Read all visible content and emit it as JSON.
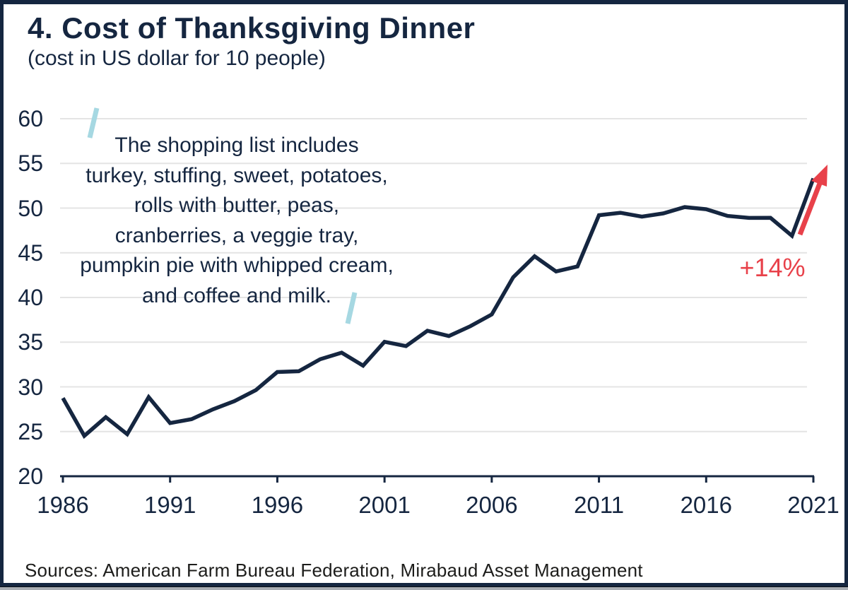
{
  "header": {
    "title": "4. Cost of Thanksgiving Dinner",
    "subtitle": "(cost in US dollar for 10 people)"
  },
  "annotation": {
    "lines": [
      "The shopping list includes",
      "turkey, stuffing, sweet, potatoes,",
      "rolls with butter, peas,",
      "cranberries, a veggie tray,",
      "pumpkin pie with whipped cream,",
      "and coffee and milk."
    ]
  },
  "callout": {
    "label": "+14%"
  },
  "footer": {
    "sources": "Sources: American Farm Bureau Federation, Mirabaud Asset Management"
  },
  "colors": {
    "navy": "#152640",
    "red": "#e8414a",
    "light_blue": "#a6d8e2",
    "gridline": "#e4e4e4",
    "source_text": "#1d1d1b"
  },
  "chart_data": {
    "type": "line",
    "title": "4. Cost of Thanksgiving Dinner",
    "subtitle": "(cost in US dollar for 10 people)",
    "xlabel": "",
    "ylabel": "",
    "xlim": [
      1986,
      2021
    ],
    "ylim": [
      20,
      60
    ],
    "grid": "horizontal",
    "legend": "none",
    "x_ticks": [
      1986,
      1991,
      1996,
      2001,
      2006,
      2011,
      2016,
      2021
    ],
    "y_ticks": [
      20,
      25,
      30,
      35,
      40,
      45,
      50,
      55,
      60
    ],
    "x": [
      1986,
      1987,
      1988,
      1989,
      1990,
      1991,
      1992,
      1993,
      1994,
      1995,
      1996,
      1997,
      1998,
      1999,
      2000,
      2001,
      2002,
      2003,
      2004,
      2005,
      2006,
      2007,
      2008,
      2009,
      2010,
      2011,
      2012,
      2013,
      2014,
      2015,
      2016,
      2017,
      2018,
      2019,
      2020,
      2021
    ],
    "series": [
      {
        "name": "Cost of Thanksgiving dinner for 10 people (USD)",
        "values": [
          28.74,
          24.51,
          26.61,
          24.7,
          28.85,
          25.95,
          26.39,
          27.49,
          28.4,
          29.64,
          31.66,
          31.75,
          33.09,
          33.83,
          32.37,
          35.04,
          34.56,
          36.28,
          35.68,
          36.78,
          38.1,
          42.26,
          44.61,
          42.91,
          43.47,
          49.2,
          49.48,
          49.04,
          49.41,
          50.11,
          49.87,
          49.12,
          48.9,
          48.91,
          46.9,
          53.31
        ]
      }
    ],
    "annotations": [
      {
        "name": "quoted-note",
        "text": "The shopping list includes turkey, stuffing, sweet, potatoes, rolls with butter, peas, cranberries, a veggie tray, pumpkin pie with whipped cream, and coffee and milk."
      },
      {
        "name": "change-callout",
        "text": "+14%",
        "meaning": "increase from 2020 (46.90) to 2021 (53.31)"
      }
    ]
  }
}
